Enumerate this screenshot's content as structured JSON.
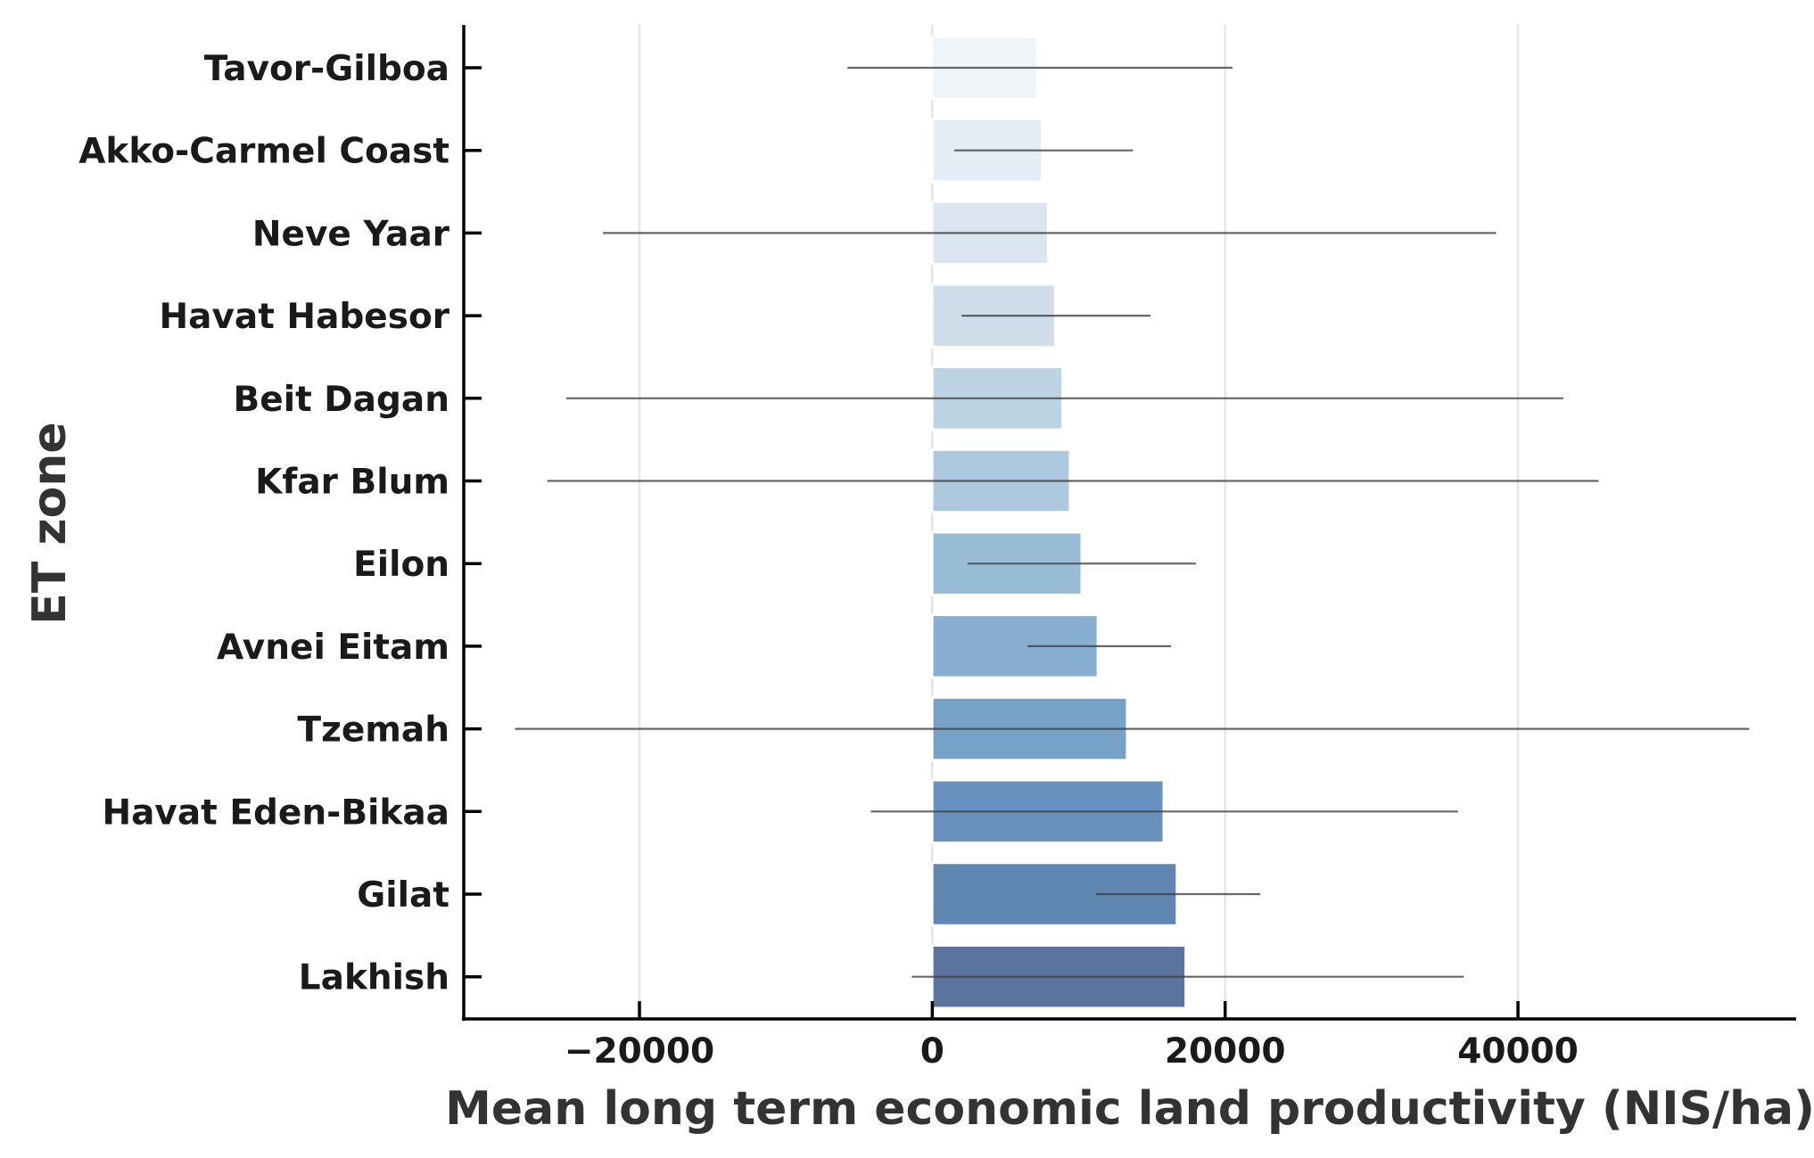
{
  "chart_data": {
    "type": "bar",
    "orientation": "horizontal",
    "xlabel": "Mean long term economic land productivity (NIS/ha)",
    "ylabel": "ET zone",
    "xlim": [
      -32000,
      59000
    ],
    "xticks": [
      -20000,
      0,
      20000,
      40000
    ],
    "xtick_labels": [
      "−20000",
      "0",
      "20000",
      "40000"
    ],
    "grid": "vertical",
    "categories": [
      "Tavor-Gilboa",
      "Akko-Carmel Coast",
      "Neve Yaar",
      "Havat Habesor",
      "Beit Dagan",
      "Kfar Blum",
      "Eilon",
      "Avnei Eitam",
      "Tzemah",
      "Havat Eden-Bikaa",
      "Gilat",
      "Lakhish"
    ],
    "values": [
      7200,
      7500,
      7900,
      8400,
      8900,
      9400,
      10200,
      11300,
      13300,
      15800,
      16700,
      17300
    ],
    "error_low": [
      -5800,
      1500,
      -22500,
      2000,
      -25000,
      -26300,
      2400,
      6500,
      -28500,
      -4200,
      11200,
      -1400
    ],
    "error_high": [
      20500,
      13700,
      38500,
      14900,
      43100,
      45500,
      18000,
      16300,
      55800,
      35900,
      22400,
      36300
    ],
    "colors": [
      "#eff4f9",
      "#e4ecf5",
      "#dbe6f0",
      "#cfdeea",
      "#bdd3e2",
      "#acc9dd",
      "#99bcd6",
      "#88afcf",
      "#77a2c8",
      "#6891bd",
      "#5f87b1",
      "#5a749d"
    ]
  }
}
